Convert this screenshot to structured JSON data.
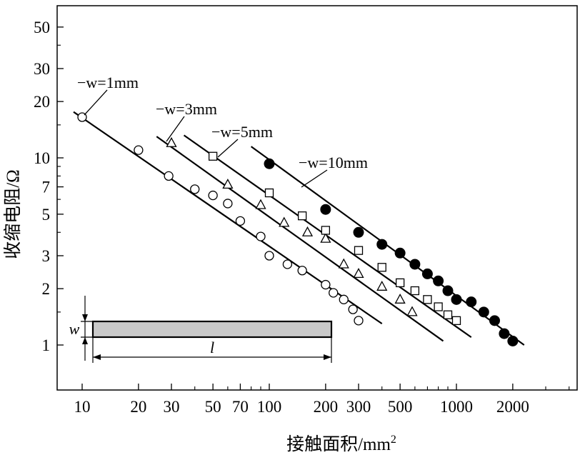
{
  "chart_data": {
    "type": "scatter",
    "xscale": "log",
    "yscale": "log",
    "xlim": [
      8,
      5000
    ],
    "ylim": [
      0.75,
      65
    ],
    "xlabel": "接触面积/mm²",
    "xlabel_main": "接触面积/mm",
    "xlabel_sup": "2",
    "ylabel": "收缩电阻/Ω",
    "grid": false,
    "x_ticks": [
      10,
      20,
      30,
      50,
      70,
      100,
      200,
      300,
      500,
      1000,
      2000
    ],
    "x_tick_labels": [
      "10",
      "20",
      "30",
      "50",
      "70",
      "100",
      "200",
      "300",
      "500",
      "1000",
      "2000"
    ],
    "x_minor_ticks": [
      40,
      60,
      80,
      90,
      400,
      600,
      700,
      800,
      900,
      3000,
      4000
    ],
    "y_ticks": [
      1,
      2,
      3,
      5,
      7,
      10,
      20,
      30,
      50
    ],
    "y_tick_labels": [
      "1",
      "2",
      "3",
      "5",
      "7",
      "10",
      "20",
      "30",
      "50"
    ],
    "y_minor_ticks": [
      1.5,
      4,
      6,
      8,
      9,
      15,
      40
    ],
    "series": [
      {
        "name": "w=1mm",
        "legend_label": "−w=1mm",
        "marker": "circle-open",
        "points": [
          [
            10,
            16.5
          ],
          [
            20,
            11
          ],
          [
            29,
            8
          ],
          [
            40,
            6.8
          ],
          [
            50,
            6.3
          ],
          [
            60,
            5.7
          ],
          [
            70,
            4.6
          ],
          [
            90,
            3.8
          ],
          [
            100,
            3.0
          ],
          [
            125,
            2.7
          ],
          [
            150,
            2.5
          ],
          [
            200,
            2.1
          ],
          [
            220,
            1.9
          ],
          [
            250,
            1.75
          ],
          [
            280,
            1.55
          ],
          [
            300,
            1.35
          ]
        ],
        "line": [
          [
            9,
            17.6
          ],
          [
            400,
            1.3
          ]
        ]
      },
      {
        "name": "w=3mm",
        "legend_label": "−w=3mm",
        "marker": "triangle-open",
        "points": [
          [
            30,
            12
          ],
          [
            60,
            7.2
          ],
          [
            90,
            5.6
          ],
          [
            120,
            4.5
          ],
          [
            160,
            4.0
          ],
          [
            200,
            3.7
          ],
          [
            250,
            2.7
          ],
          [
            300,
            2.4
          ],
          [
            400,
            2.05
          ],
          [
            500,
            1.75
          ],
          [
            580,
            1.5
          ]
        ],
        "line": [
          [
            25,
            13.0
          ],
          [
            850,
            1.05
          ]
        ]
      },
      {
        "name": "w=5mm",
        "legend_label": "−w=5mm",
        "marker": "square-open",
        "points": [
          [
            50,
            10.2
          ],
          [
            100,
            6.5
          ],
          [
            150,
            4.9
          ],
          [
            200,
            4.1
          ],
          [
            300,
            3.2
          ],
          [
            400,
            2.6
          ],
          [
            500,
            2.15
          ],
          [
            600,
            1.95
          ],
          [
            700,
            1.75
          ],
          [
            800,
            1.6
          ],
          [
            900,
            1.45
          ],
          [
            1000,
            1.35
          ]
        ],
        "line": [
          [
            35,
            13.2
          ],
          [
            1200,
            1.1
          ]
        ]
      },
      {
        "name": "w=10mm",
        "legend_label": "−w=10mm",
        "marker": "circle-filled",
        "points": [
          [
            100,
            9.3
          ],
          [
            200,
            5.3
          ],
          [
            300,
            4.0
          ],
          [
            400,
            3.45
          ],
          [
            500,
            3.1
          ],
          [
            600,
            2.7
          ],
          [
            700,
            2.4
          ],
          [
            800,
            2.2
          ],
          [
            900,
            1.95
          ],
          [
            1000,
            1.75
          ],
          [
            1200,
            1.7
          ],
          [
            1400,
            1.5
          ],
          [
            1600,
            1.35
          ],
          [
            1800,
            1.15
          ],
          [
            2000,
            1.05
          ]
        ],
        "line": [
          [
            80,
            11.5
          ],
          [
            2300,
            1.0
          ]
        ]
      }
    ],
    "inset": {
      "w_label": "w",
      "l_label": "l"
    }
  }
}
